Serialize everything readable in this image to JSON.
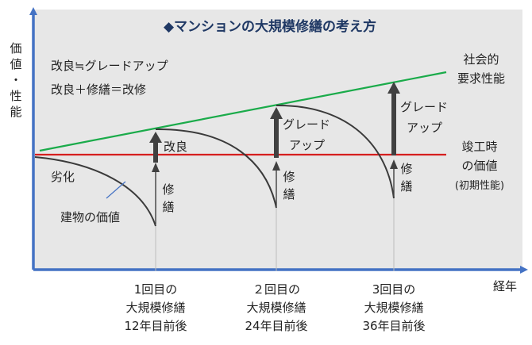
{
  "title": "◆マンションの大規模修繕の考え方",
  "y_axis_label": [
    "価",
    "値",
    "・",
    "性",
    "能"
  ],
  "x_axis_label": "経年",
  "definitions": {
    "line1": "改良≒グレードアップ",
    "line2": "改良＋修繕＝改修"
  },
  "legend": {
    "social_line": [
      "社会的",
      "要求性能"
    ],
    "completion_line": [
      "竣工時",
      "の価値",
      "(初期性能)"
    ]
  },
  "labels": {
    "deterioration": "劣化",
    "building_value": "建物の価値",
    "improvement": "改良",
    "repair": [
      "修",
      "繕"
    ],
    "grade_up_1": [
      "グレード",
      "アップ"
    ],
    "grade_up_2": [
      "グレード",
      "アップ"
    ]
  },
  "milestones": [
    {
      "line1": "1回目の",
      "line2": "大規模修繕",
      "line3": "12年目前後"
    },
    {
      "line1": "２回目の",
      "line2": "大規模修繕",
      "line3": "24年目前後"
    },
    {
      "line1": "3回目の",
      "line2": "大規模修繕",
      "line3": "36年目前後"
    }
  ],
  "colors": {
    "axis": "#4472c4",
    "panel": "#e7e7e7",
    "social_line": "#1aab4a",
    "completion_line": "#d61f1f",
    "curve": "#3a3a3a",
    "arrow": "#404040",
    "title": "#1f3864"
  }
}
